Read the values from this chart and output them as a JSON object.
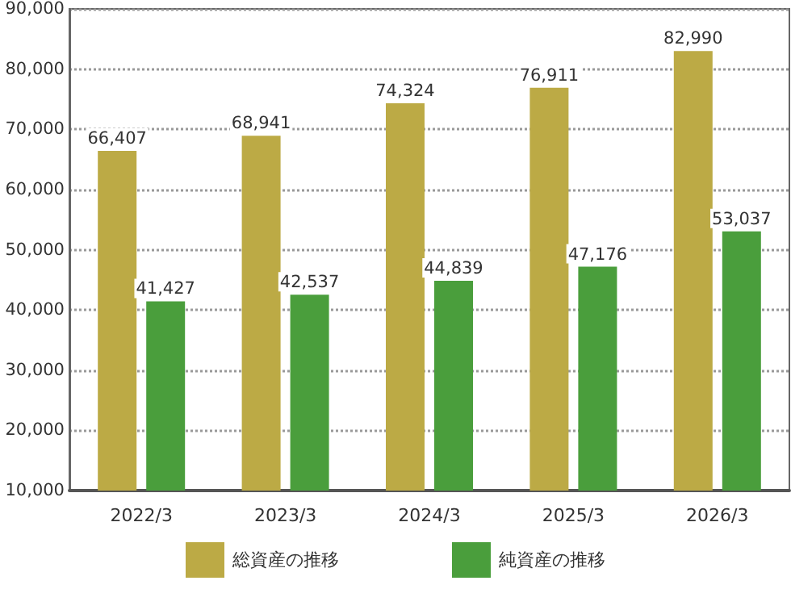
{
  "chart_data": {
    "type": "bar",
    "categories": [
      "2022/3",
      "2023/3",
      "2024/3",
      "2025/3",
      "2026/3"
    ],
    "series": [
      {
        "name": "総資産の推移",
        "color": "#bcaa45",
        "values": [
          66407,
          68941,
          74324,
          76911,
          82990
        ],
        "value_labels": [
          "66,407",
          "68,941",
          "74,324",
          "76,911",
          "82,990"
        ]
      },
      {
        "name": "純資産の推移",
        "color": "#4a9e3c",
        "values": [
          41427,
          42537,
          44839,
          47176,
          53037
        ],
        "value_labels": [
          "41,427",
          "42,537",
          "44,839",
          "47,176",
          "53,037"
        ]
      }
    ],
    "ylim": [
      10000,
      90000
    ],
    "yticks": [
      {
        "value": 10000,
        "label": "10,000"
      },
      {
        "value": 20000,
        "label": "20,000"
      },
      {
        "value": 30000,
        "label": "30,000"
      },
      {
        "value": 40000,
        "label": "40,000"
      },
      {
        "value": 50000,
        "label": "50,000"
      },
      {
        "value": 60000,
        "label": "60,000"
      },
      {
        "value": 70000,
        "label": "70,000"
      },
      {
        "value": 80000,
        "label": "80,000"
      },
      {
        "value": 90000,
        "label": "90,000"
      }
    ],
    "grid": "y",
    "legend": "bottom"
  }
}
